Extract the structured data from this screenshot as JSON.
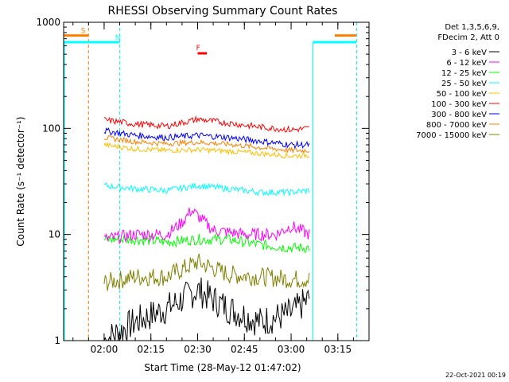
{
  "chart_data": {
    "type": "line",
    "title": "RHESSI Observing Summary Count Rates",
    "xlabel": "Start Time (28-May-12 01:47:02)",
    "ylabel": "Count Rate (s⁻¹ detector⁻¹)",
    "y_scale": "log",
    "ylim": [
      1,
      1000
    ],
    "x_unit": "minutes",
    "xlim": [
      "01:47",
      "03:25"
    ],
    "x_ticks": [
      {
        "label": "02:00",
        "value": "02:00"
      },
      {
        "label": "02:15",
        "value": "02:15"
      },
      {
        "label": "02:30",
        "value": "02:30"
      },
      {
        "label": "02:45",
        "value": "02:45"
      },
      {
        "label": "03:00",
        "value": "03:00"
      },
      {
        "label": "03:15",
        "value": "03:15"
      }
    ],
    "y_ticks": [
      {
        "label": "1",
        "value": 1
      },
      {
        "label": "10",
        "value": 10
      },
      {
        "label": "100",
        "value": 100
      },
      {
        "label": "1000",
        "value": 1000
      }
    ],
    "legend": {
      "position": "top-right",
      "header": [
        "Det 1,3,5,6,9,",
        "FDecim 2, Att 0"
      ],
      "entries": [
        {
          "label": "3 - 6 keV",
          "color": "#000000"
        },
        {
          "label": "6 - 12 keV",
          "color": "#ff00ff"
        },
        {
          "label": "12 - 25 keV",
          "color": "#00ff00"
        },
        {
          "label": "25 - 50 keV",
          "color": "#00ffff"
        },
        {
          "label": "50 - 100 keV",
          "color": "#ffbf00"
        },
        {
          "label": "100 - 300 keV",
          "color": "#ff0000"
        },
        {
          "label": "300 - 800 keV",
          "color": "#0000ff"
        },
        {
          "label": "800 - 7000 keV",
          "color": "#ff8000"
        },
        {
          "label": "7000 - 15000 keV",
          "color": "#808000"
        }
      ]
    },
    "series": [
      {
        "name": "100 - 300 keV",
        "color": "#ff0000",
        "x": [
          "02:00",
          "02:10",
          "02:20",
          "02:30",
          "02:40",
          "02:50",
          "03:00",
          "03:06"
        ],
        "values": [
          120,
          110,
          105,
          122,
          112,
          103,
          97,
          100
        ]
      },
      {
        "name": "300 - 800 keV",
        "color": "#0000ff",
        "x": [
          "02:00",
          "02:10",
          "02:20",
          "02:30",
          "02:40",
          "02:50",
          "03:00",
          "03:06"
        ],
        "values": [
          95,
          86,
          82,
          86,
          82,
          76,
          70,
          70
        ]
      },
      {
        "name": "800 - 7000 keV",
        "color": "#ff8000",
        "x": [
          "02:00",
          "02:10",
          "02:20",
          "02:30",
          "02:40",
          "02:50",
          "03:00",
          "03:06"
        ],
        "values": [
          82,
          75,
          72,
          74,
          71,
          66,
          62,
          62
        ]
      },
      {
        "name": "50 - 100 keV",
        "color": "#ffbf00",
        "x": [
          "02:00",
          "02:10",
          "02:20",
          "02:30",
          "02:40",
          "02:50",
          "03:00",
          "03:06"
        ],
        "values": [
          70,
          64,
          62,
          63,
          61,
          58,
          55,
          56
        ]
      },
      {
        "name": "25 - 50 keV",
        "color": "#00ffff",
        "x": [
          "02:00",
          "02:10",
          "02:20",
          "02:30",
          "02:40",
          "02:50",
          "03:00",
          "03:06"
        ],
        "values": [
          29,
          27,
          26,
          29,
          27,
          25,
          25,
          26
        ]
      },
      {
        "name": "6 - 12 keV",
        "color": "#ff00ff",
        "x": [
          "02:00",
          "02:10",
          "02:20",
          "02:25",
          "02:28",
          "02:35",
          "02:45",
          "02:55",
          "03:00",
          "03:06"
        ],
        "values": [
          9,
          10,
          10,
          13,
          17,
          11,
          10,
          10,
          12,
          10
        ]
      },
      {
        "name": "12 - 25 keV",
        "color": "#00ff00",
        "x": [
          "02:00",
          "02:10",
          "02:20",
          "02:30",
          "02:40",
          "02:50",
          "03:00",
          "03:06"
        ],
        "values": [
          9,
          9,
          8.5,
          9,
          9,
          8,
          7.5,
          7.5
        ]
      },
      {
        "name": "7000 - 15000 keV",
        "color": "#808000",
        "x": [
          "02:00",
          "02:10",
          "02:20",
          "02:30",
          "02:40",
          "02:50",
          "03:00",
          "03:06"
        ],
        "values": [
          3.5,
          4,
          4,
          5.5,
          4.2,
          4,
          3.8,
          3.8
        ]
      },
      {
        "name": "3 - 6 keV",
        "color": "#000000",
        "x": [
          "02:00",
          "02:10",
          "02:20",
          "02:30",
          "02:40",
          "02:50",
          "03:00",
          "03:06"
        ],
        "values": [
          1,
          1.5,
          2,
          3,
          2,
          1.5,
          1.8,
          2.5
        ]
      }
    ],
    "annotations": [
      {
        "text": "S",
        "color": "#ff8000",
        "x": "01:51",
        "value": 750
      },
      {
        "text": "N",
        "color": "#00ffff",
        "x": "02:02",
        "value": 650
      },
      {
        "text": "F",
        "color": "#ff0000",
        "x": "02:28",
        "value": 520
      }
    ],
    "markers": [
      {
        "kind": "S",
        "color": "#ff8000",
        "x": [
          "01:47",
          "01:55"
        ],
        "value": 750,
        "dash": "01:55"
      },
      {
        "kind": "S",
        "color": "#ff8000",
        "x": [
          "03:14",
          "03:21"
        ],
        "value": 750,
        "dash": "03:21"
      },
      {
        "kind": "N",
        "color": "#00ffff",
        "x": [
          "01:47",
          "02:05"
        ],
        "value": 650,
        "dash": "02:05"
      },
      {
        "kind": "N",
        "color": "#00ffff",
        "x": [
          "03:07",
          "03:21"
        ],
        "value": 650,
        "dash": "03:21"
      },
      {
        "kind": "F",
        "color": "#ff0000",
        "x": [
          "02:30",
          "02:33"
        ],
        "value": 510
      }
    ],
    "grid": false
  },
  "footer": {
    "timestamp": "22-Oct-2021 00:19"
  }
}
